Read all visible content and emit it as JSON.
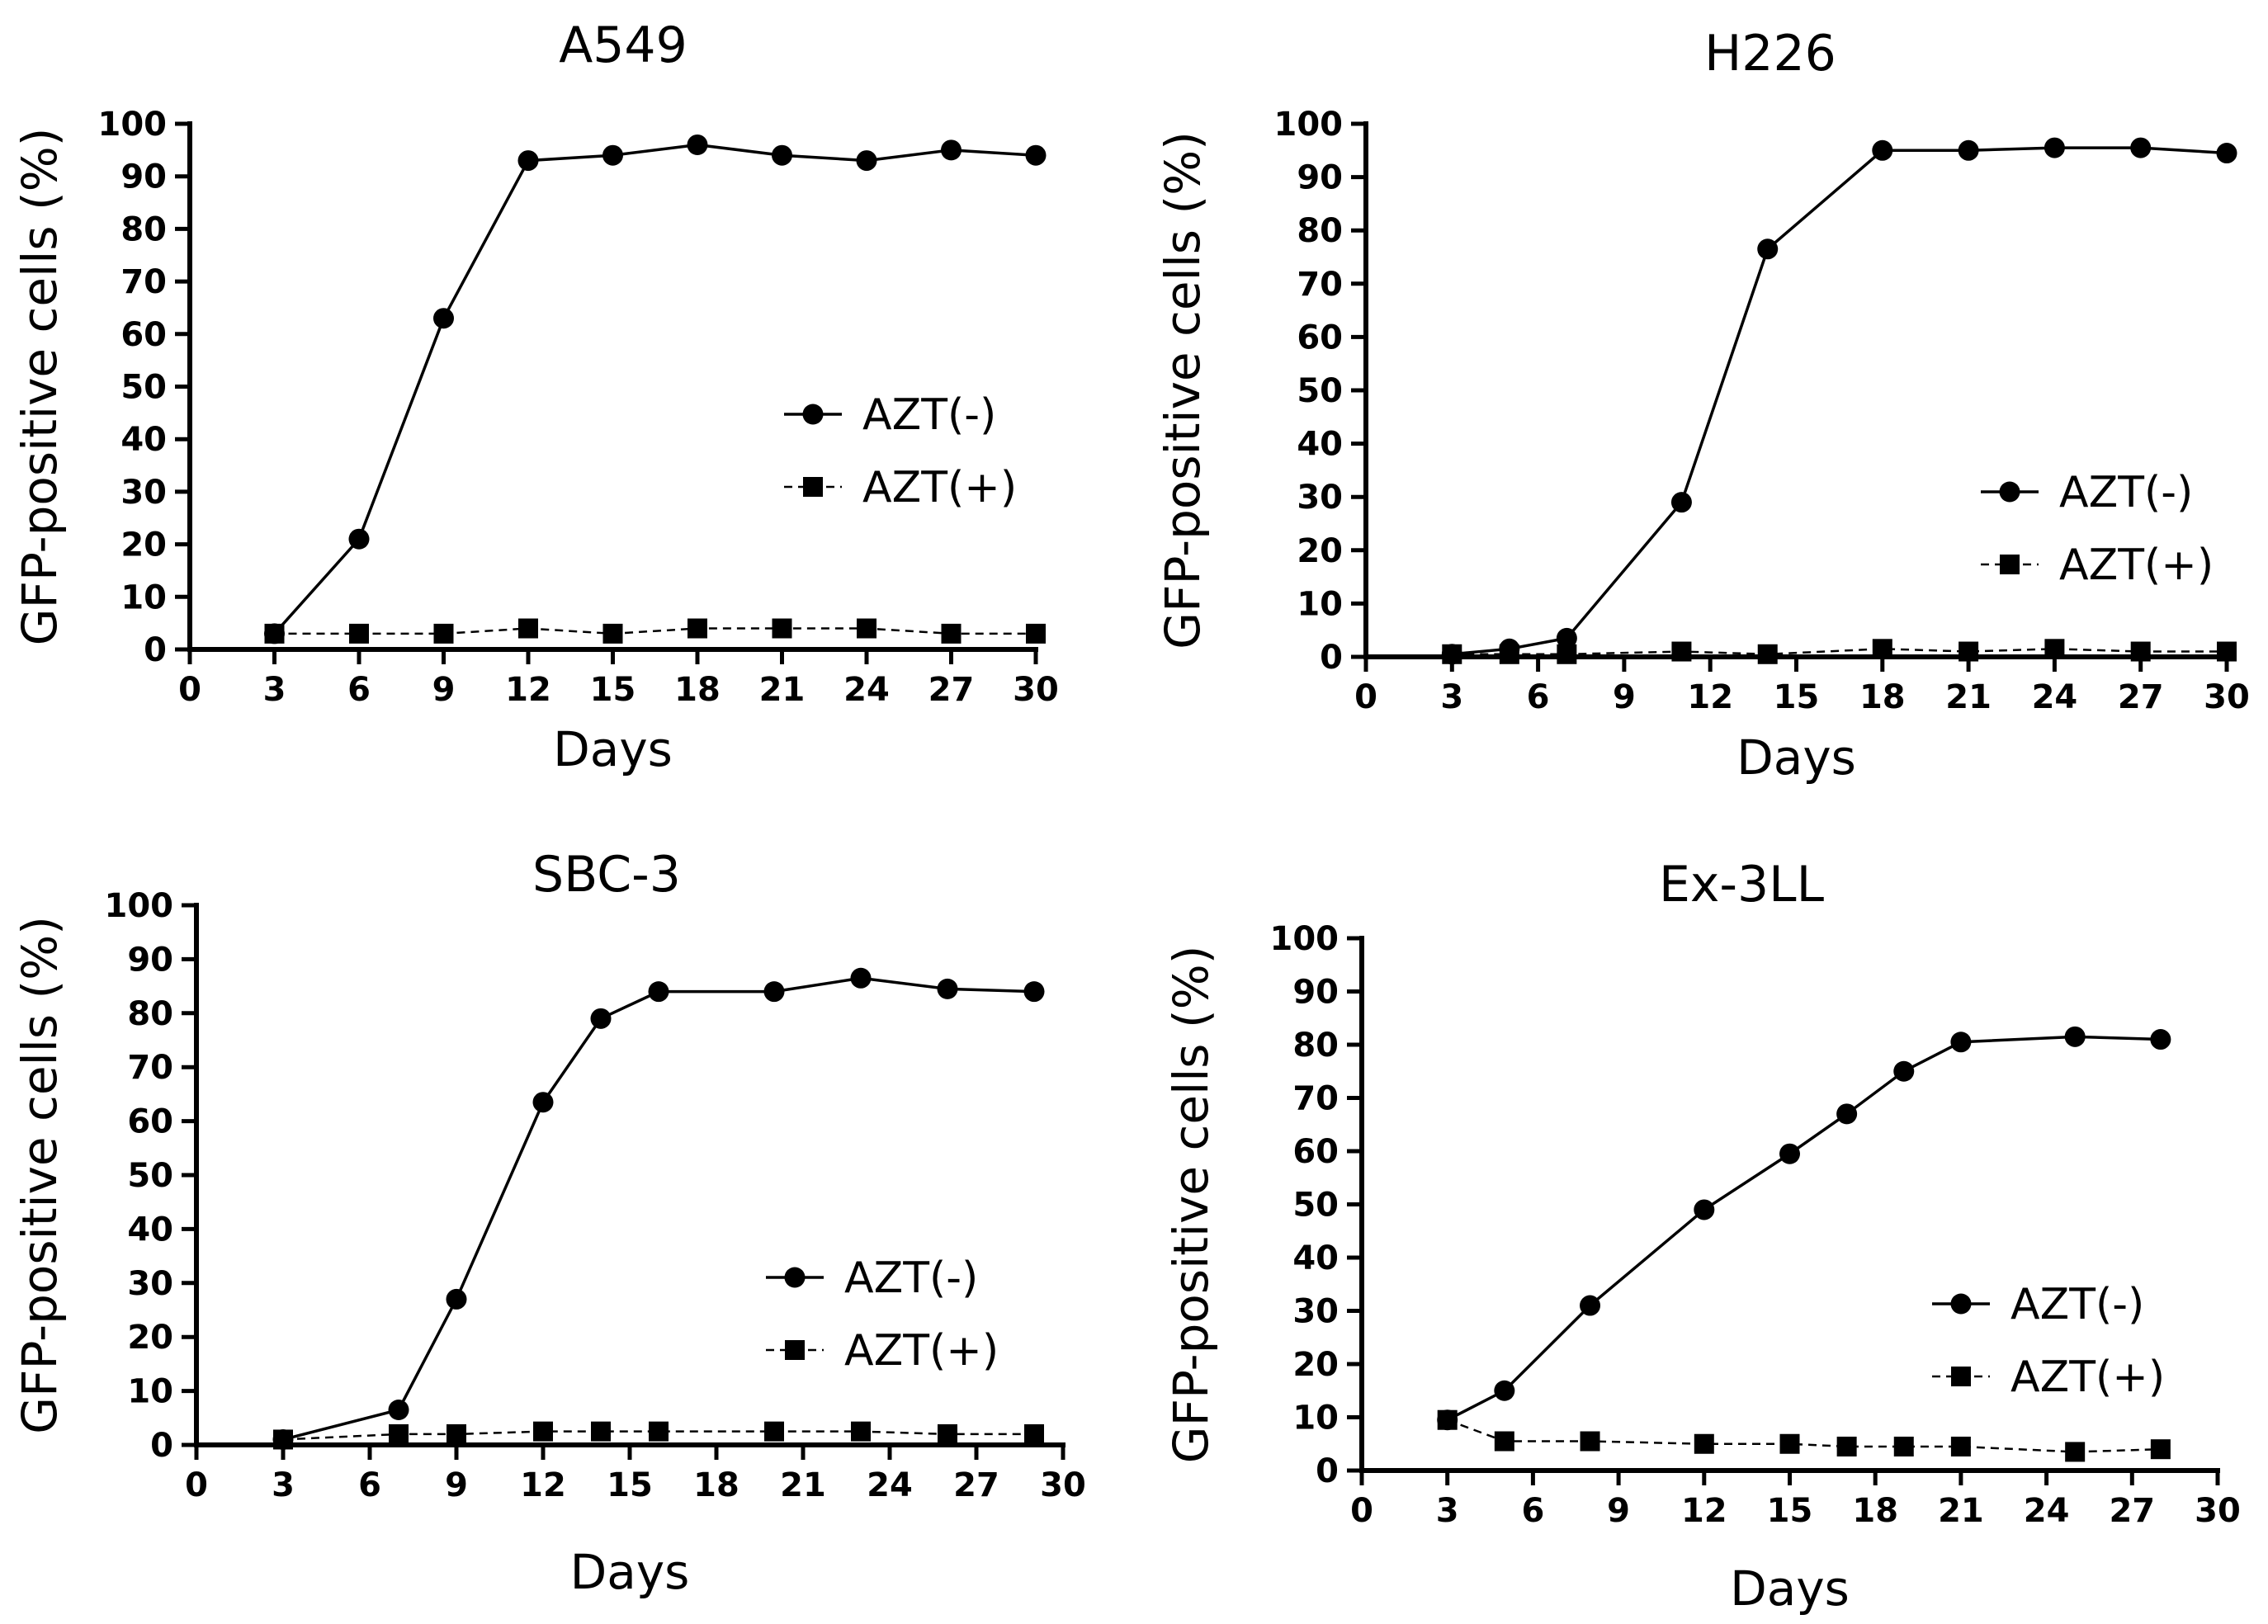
{
  "chart_data": [
    {
      "type": "line",
      "title": "A549",
      "xlabel": "Days",
      "ylabel": "GFP-positive cells (%)",
      "xlim": [
        0,
        30
      ],
      "ylim": [
        0,
        100
      ],
      "xticks": [
        0,
        3,
        6,
        9,
        12,
        15,
        18,
        21,
        24,
        27,
        30
      ],
      "yticks": [
        0,
        10,
        20,
        30,
        40,
        50,
        60,
        70,
        80,
        90,
        100
      ],
      "legend_position": "right",
      "series": [
        {
          "name": "AZT(-)",
          "marker": "circle",
          "line": "solid",
          "x": [
            3,
            6,
            9,
            12,
            15,
            18,
            21,
            24,
            27,
            30
          ],
          "y": [
            3,
            21,
            63,
            93,
            94,
            96,
            94,
            93,
            95,
            94
          ]
        },
        {
          "name": "AZT(+)",
          "marker": "square",
          "line": "dashed",
          "x": [
            3,
            6,
            9,
            12,
            15,
            18,
            21,
            24,
            27,
            30
          ],
          "y": [
            3,
            3,
            3,
            4,
            3,
            4,
            4,
            4,
            3,
            3
          ]
        }
      ]
    },
    {
      "type": "line",
      "title": "H226",
      "xlabel": "Days",
      "ylabel": "GFP-positive cells (%)",
      "xlim": [
        0,
        30
      ],
      "ylim": [
        0,
        100
      ],
      "xticks": [
        0,
        3,
        6,
        9,
        12,
        15,
        18,
        21,
        24,
        27,
        30
      ],
      "yticks": [
        0,
        10,
        20,
        30,
        40,
        50,
        60,
        70,
        80,
        90,
        100
      ],
      "legend_position": "right",
      "series": [
        {
          "name": "AZT(-)",
          "marker": "circle",
          "line": "solid",
          "x": [
            3,
            5,
            7,
            11,
            14,
            18,
            21,
            24,
            27,
            30
          ],
          "y": [
            0.5,
            1.5,
            3.5,
            29,
            76.5,
            95,
            95,
            95.5,
            95.5,
            94.5
          ]
        },
        {
          "name": "AZT(+)",
          "marker": "square",
          "line": "dashed",
          "x": [
            3,
            5,
            7,
            11,
            14,
            18,
            21,
            24,
            27,
            30
          ],
          "y": [
            0.5,
            0.5,
            0.5,
            1,
            0.5,
            1.5,
            1,
            1.5,
            1,
            1
          ]
        }
      ]
    },
    {
      "type": "line",
      "title": "SBC-3",
      "xlabel": "Days",
      "ylabel": "GFP-positive cells (%)",
      "xlim": [
        0,
        30
      ],
      "ylim": [
        0,
        100
      ],
      "xticks": [
        0,
        3,
        6,
        9,
        12,
        15,
        18,
        21,
        24,
        27,
        30
      ],
      "yticks": [
        0,
        10,
        20,
        30,
        40,
        50,
        60,
        70,
        80,
        90,
        100
      ],
      "legend_position": "right",
      "series": [
        {
          "name": "AZT(-)",
          "marker": "circle",
          "line": "solid",
          "x": [
            3,
            7,
            9,
            12,
            14,
            16,
            20,
            23,
            26,
            29
          ],
          "y": [
            1,
            6.5,
            27,
            63.5,
            79,
            84,
            84,
            86.5,
            84.5,
            84
          ]
        },
        {
          "name": "AZT(+)",
          "marker": "square",
          "line": "dashed",
          "x": [
            3,
            7,
            9,
            12,
            14,
            16,
            20,
            23,
            26,
            29
          ],
          "y": [
            1,
            2,
            2,
            2.5,
            2.5,
            2.5,
            2.5,
            2.5,
            2,
            2
          ]
        }
      ]
    },
    {
      "type": "line",
      "title": "Ex-3LL",
      "xlabel": "Days",
      "ylabel": "GFP-positive cells (%)",
      "xlim": [
        0,
        30
      ],
      "ylim": [
        0,
        100
      ],
      "xticks": [
        0,
        3,
        6,
        9,
        12,
        15,
        18,
        21,
        24,
        27,
        30
      ],
      "yticks": [
        0,
        10,
        20,
        30,
        40,
        50,
        60,
        70,
        80,
        90,
        100
      ],
      "legend_position": "right",
      "series": [
        {
          "name": "AZT(-)",
          "marker": "circle",
          "line": "solid",
          "x": [
            3,
            5,
            8,
            12,
            15,
            17,
            19,
            21,
            25,
            28
          ],
          "y": [
            9.5,
            15,
            31,
            49,
            59.5,
            67,
            75,
            80.5,
            81.5,
            81
          ]
        },
        {
          "name": "AZT(+)",
          "marker": "square",
          "line": "dashed",
          "x": [
            3,
            5,
            8,
            12,
            15,
            17,
            19,
            21,
            25,
            28
          ],
          "y": [
            9.5,
            5.5,
            5.5,
            5,
            5,
            4.5,
            4.5,
            4.5,
            3.5,
            4
          ]
        }
      ]
    }
  ]
}
